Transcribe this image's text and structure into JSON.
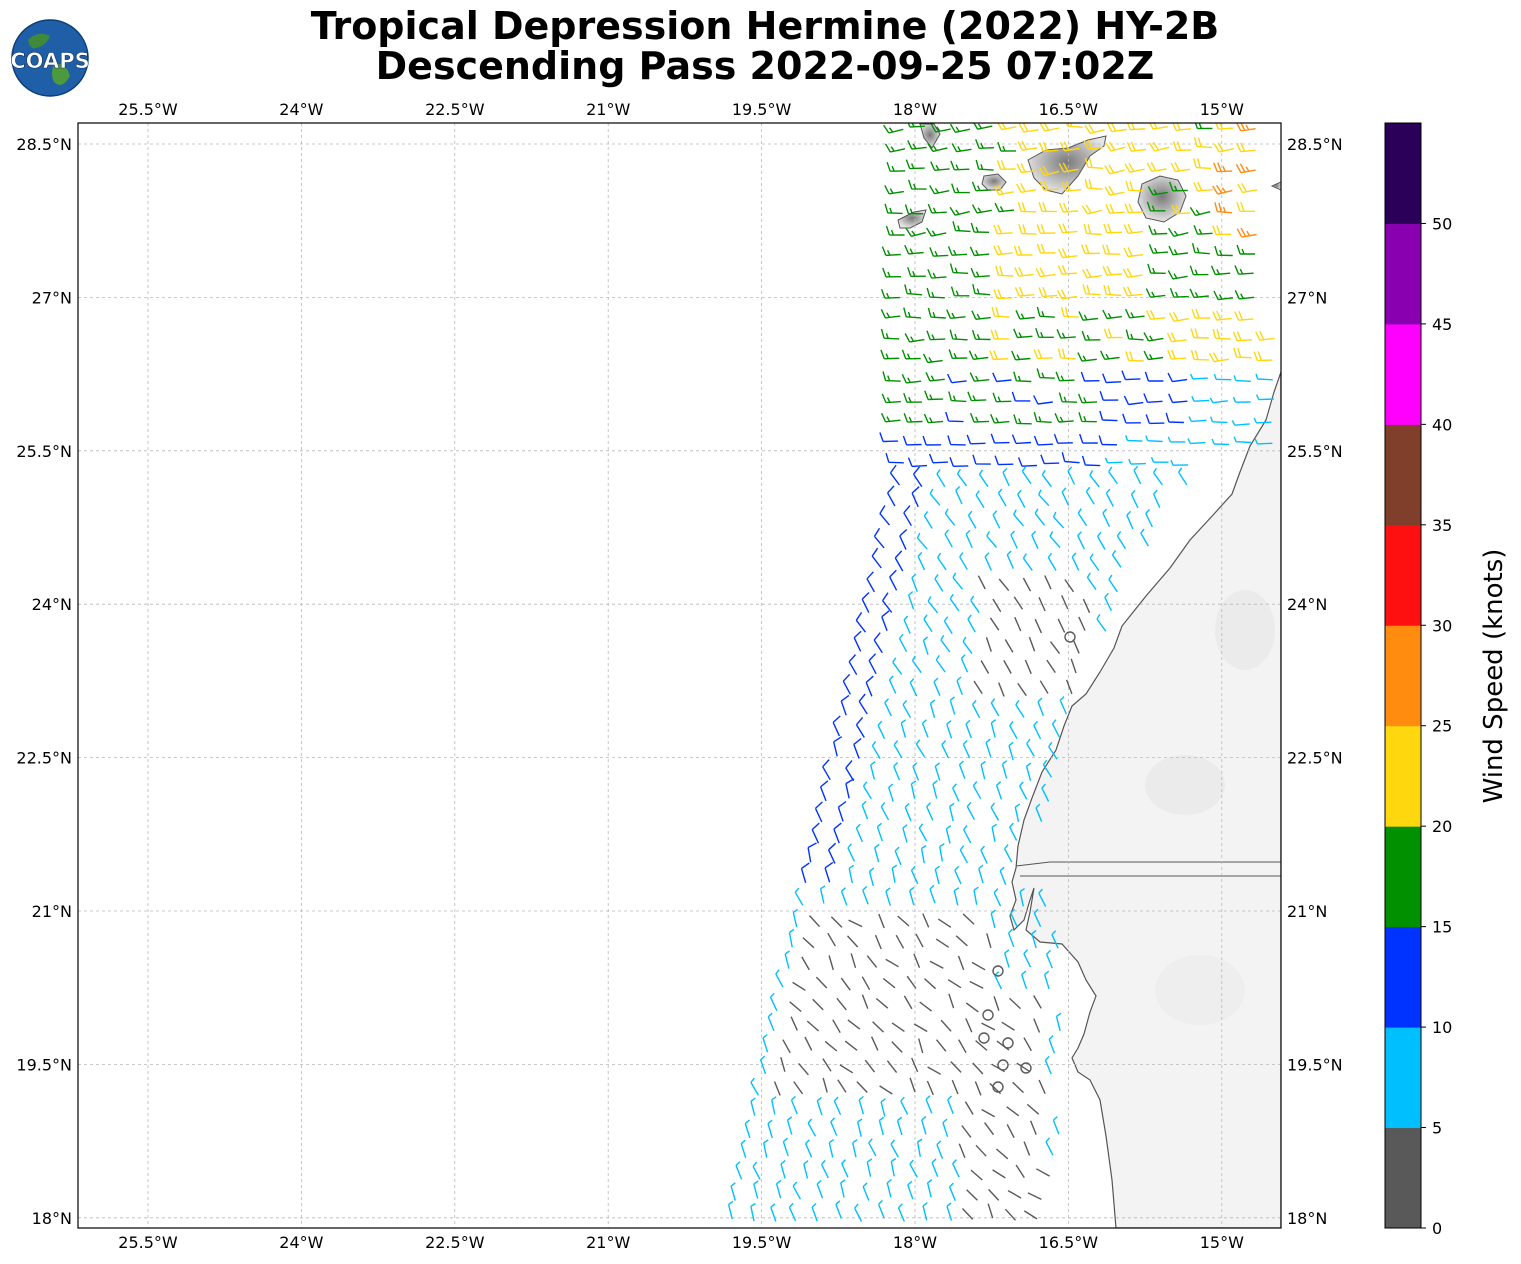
{
  "title_line1": "Tropical Depression Hermine (2022) HY-2B",
  "title_line2": "Descending Pass 2022-09-25 07:02Z",
  "logo_text": "COAPS",
  "lon_ticks": [
    "25.5°W",
    "24°W",
    "22.5°W",
    "21°W",
    "19.5°W",
    "18°W",
    "16.5°W",
    "15°W"
  ],
  "lat_ticks": [
    "28.5°N",
    "27°N",
    "25.5°N",
    "24°N",
    "22.5°N",
    "21°N",
    "19.5°N",
    "18°N"
  ],
  "colorbar": {
    "label": "Wind Speed (knots)",
    "ticks": [
      "0",
      "5",
      "10",
      "15",
      "20",
      "25",
      "30",
      "35",
      "40",
      "45",
      "50"
    ],
    "colors": [
      "#595959",
      "#00bfff",
      "#0033ff",
      "#009000",
      "#ffd70f",
      "#ff8c0f",
      "#ff1010",
      "#7f3f2a",
      "#ff00ff",
      "#8800b0",
      "#2a0059"
    ]
  },
  "colors": {
    "grid": "#b8b8b8",
    "coast": "#555555",
    "land": "#f4f4f4"
  },
  "wind_swath": {
    "description_type": "wind barbs",
    "speed_classes_knots": [
      [
        0,
        5
      ],
      [
        5,
        10
      ],
      [
        10,
        15
      ],
      [
        15,
        20
      ],
      [
        20,
        25
      ],
      [
        25,
        30
      ]
    ]
  }
}
